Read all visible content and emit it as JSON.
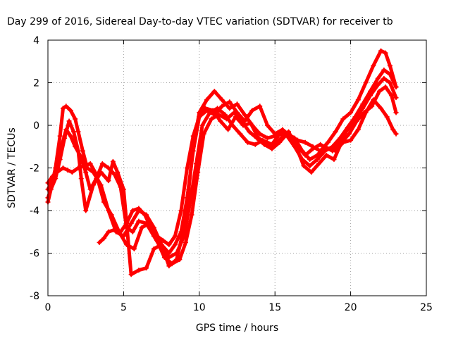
{
  "chart_data": {
    "type": "scatter",
    "title": "Day 299 of 2016, Sidereal Day-to-day VTEC variation (SDTVAR) for receiver tb",
    "xlabel": "GPS time / hours",
    "ylabel": "SDTVAR / TECUs",
    "xlim": [
      0,
      25
    ],
    "ylim": [
      -8,
      4
    ],
    "xticks": [
      0,
      5,
      10,
      15,
      20,
      25
    ],
    "yticks": [
      -8,
      -6,
      -4,
      -2,
      0,
      2,
      4
    ],
    "grid": true,
    "legend": "none",
    "marker": "plus",
    "color": "#ff0000",
    "series": [
      {
        "x": [
          0.0,
          0.2,
          0.5,
          0.8,
          1.0,
          1.2,
          1.5,
          1.8,
          2.0,
          2.3,
          2.6,
          3.0,
          3.5,
          4.0,
          4.5,
          5.0,
          5.5,
          6.0,
          6.5,
          7.0,
          7.5,
          8.0,
          8.5,
          9.0,
          9.3,
          9.6,
          10.0,
          10.5,
          11.0,
          11.5,
          12.0,
          12.5,
          13.0,
          13.5,
          14.0,
          14.5,
          15.0,
          15.5,
          16.0,
          16.5,
          17.0,
          17.5,
          18.0,
          18.5,
          19.0,
          19.5,
          20.0,
          20.5,
          21.0,
          21.5,
          22.0,
          22.3,
          22.6,
          23.0
        ],
        "y": [
          -3.6,
          -3.0,
          -2.0,
          -0.5,
          0.8,
          0.9,
          0.7,
          0.3,
          -0.3,
          -1.2,
          -2.0,
          -2.2,
          -2.8,
          -4.0,
          -5.0,
          -5.2,
          -4.6,
          -4.0,
          -4.2,
          -4.8,
          -5.6,
          -6.6,
          -6.3,
          -4.8,
          -3.0,
          -1.0,
          0.6,
          1.2,
          1.6,
          1.2,
          0.8,
          1.0,
          0.5,
          0.0,
          -0.4,
          -0.6,
          -0.5,
          -0.3,
          -0.5,
          -0.7,
          -0.8,
          -1.0,
          -1.2,
          -0.8,
          -0.3,
          0.3,
          0.6,
          1.2,
          2.0,
          2.8,
          3.5,
          3.4,
          2.8,
          1.8
        ]
      },
      {
        "x": [
          0.0,
          0.3,
          0.6,
          0.9,
          1.2,
          1.5,
          1.8,
          2.2,
          2.5,
          2.8,
          3.2,
          3.6,
          4.0,
          4.4,
          4.8,
          5.2,
          5.6,
          6.0,
          6.5,
          7.0,
          7.5,
          8.0,
          8.5,
          9.0,
          9.4,
          9.8,
          10.2,
          10.7,
          11.2,
          11.7,
          12.2,
          12.7,
          13.2,
          13.7,
          14.2,
          14.8,
          15.3,
          15.8,
          16.3,
          16.8,
          17.3,
          17.8,
          18.3,
          18.8,
          19.3,
          19.8,
          20.3,
          20.8,
          21.3,
          21.8,
          22.2,
          22.6,
          23.0
        ],
        "y": [
          -3.0,
          -2.6,
          -1.8,
          -1.0,
          -0.2,
          -0.5,
          -1.0,
          -1.5,
          -2.2,
          -3.0,
          -2.5,
          -1.8,
          -2.0,
          -2.3,
          -2.9,
          -4.8,
          -5.0,
          -4.5,
          -4.6,
          -5.2,
          -5.8,
          -6.2,
          -6.0,
          -5.2,
          -3.6,
          -1.8,
          0.0,
          0.6,
          0.8,
          0.5,
          0.0,
          -0.4,
          -0.8,
          -0.9,
          -0.7,
          -0.9,
          -0.4,
          -0.5,
          -1.0,
          -1.6,
          -1.9,
          -1.6,
          -1.2,
          -1.0,
          -0.6,
          -0.1,
          0.4,
          1.0,
          1.6,
          2.2,
          2.6,
          2.4,
          1.8
        ]
      },
      {
        "x": [
          0.0,
          0.3,
          0.6,
          1.0,
          1.3,
          1.6,
          2.0,
          2.4,
          2.8,
          3.2,
          3.7,
          4.2,
          4.7,
          5.2,
          5.7,
          6.2,
          6.7,
          7.2,
          7.7,
          8.2,
          8.7,
          9.1,
          9.5,
          9.9,
          10.3,
          10.8,
          11.3,
          11.8,
          12.3,
          12.8,
          13.3,
          13.8,
          14.3,
          14.8,
          15.3,
          15.8,
          16.3,
          16.8,
          17.3,
          17.8,
          18.3,
          18.8,
          19.3,
          19.8,
          20.3,
          20.8,
          21.3,
          21.8,
          22.2,
          22.6,
          23.0
        ],
        "y": [
          -2.7,
          -2.4,
          -2.2,
          -2.0,
          -2.1,
          -2.2,
          -2.0,
          -1.9,
          -1.8,
          -2.3,
          -3.6,
          -4.2,
          -5.0,
          -5.6,
          -5.8,
          -4.8,
          -4.6,
          -5.4,
          -6.2,
          -6.5,
          -6.3,
          -5.5,
          -4.2,
          -2.2,
          -0.4,
          0.3,
          0.5,
          0.3,
          0.6,
          0.2,
          -0.3,
          -0.6,
          -0.9,
          -1.1,
          -0.8,
          -0.4,
          -0.6,
          -1.2,
          -1.6,
          -1.4,
          -1.0,
          -1.2,
          -0.7,
          -0.2,
          0.3,
          0.8,
          1.4,
          1.9,
          2.2,
          2.0,
          1.3
        ]
      },
      {
        "x": [
          0.0,
          0.2,
          0.5,
          0.8,
          1.1,
          1.4,
          1.7,
          2.0,
          2.2,
          2.5,
          3.0,
          3.5,
          4.0,
          4.3,
          4.6,
          5.0,
          5.5,
          6.0,
          6.5,
          7.0,
          7.5,
          8.0,
          8.4,
          8.8,
          9.2,
          9.6,
          10.0,
          10.4,
          10.9,
          11.4,
          11.9,
          12.4,
          12.9,
          13.4,
          13.9,
          14.4,
          14.9,
          15.4,
          15.9,
          16.4,
          16.9,
          17.4,
          17.9,
          18.4,
          18.9,
          19.4,
          19.9,
          20.4,
          20.9,
          21.4,
          21.9,
          22.3,
          22.7,
          23.0
        ],
        "y": [
          -3.4,
          -3.0,
          -2.5,
          -1.6,
          -0.6,
          0.2,
          -0.3,
          -1.2,
          -2.5,
          -4.0,
          -2.8,
          -2.2,
          -2.6,
          -1.7,
          -2.2,
          -3.0,
          -7.0,
          -6.8,
          -6.7,
          -5.8,
          -5.6,
          -6.0,
          -5.6,
          -5.0,
          -3.4,
          -1.2,
          0.4,
          0.8,
          0.7,
          0.2,
          -0.2,
          0.4,
          0.0,
          0.1,
          -0.6,
          -0.8,
          -1.0,
          -0.6,
          -0.3,
          -1.0,
          -1.9,
          -2.2,
          -1.8,
          -1.4,
          -1.6,
          -0.8,
          -0.4,
          0.2,
          0.6,
          0.9,
          1.6,
          1.8,
          1.4,
          0.6
        ]
      },
      {
        "x": [
          3.4,
          3.7,
          4.0,
          4.4,
          4.8,
          5.2,
          5.6,
          6.0,
          6.4,
          6.8,
          7.2,
          7.6,
          8.0,
          8.4,
          8.8,
          9.2,
          9.6,
          10.0,
          10.5,
          11.0,
          11.5,
          12.0,
          12.5,
          13.0,
          13.5,
          14.0,
          14.5,
          15.0,
          15.5,
          16.0,
          16.5,
          17.0,
          17.5,
          18.0,
          18.5,
          19.0,
          19.5,
          20.0,
          20.5,
          21.0,
          21.5,
          22.0,
          22.4,
          22.8,
          23.0
        ],
        "y": [
          -5.5,
          -5.3,
          -5.0,
          -4.9,
          -5.0,
          -4.6,
          -4.0,
          -3.9,
          -4.2,
          -4.8,
          -5.2,
          -5.4,
          -5.6,
          -5.2,
          -4.0,
          -2.0,
          -0.5,
          0.4,
          0.7,
          0.5,
          0.9,
          1.1,
          0.6,
          0.2,
          0.7,
          0.9,
          0.0,
          -0.4,
          -0.2,
          -0.5,
          -1.0,
          -1.4,
          -1.1,
          -0.9,
          -1.1,
          -1.2,
          -0.8,
          -0.7,
          -0.2,
          0.6,
          1.2,
          0.8,
          0.4,
          -0.2,
          -0.4
        ]
      }
    ]
  }
}
